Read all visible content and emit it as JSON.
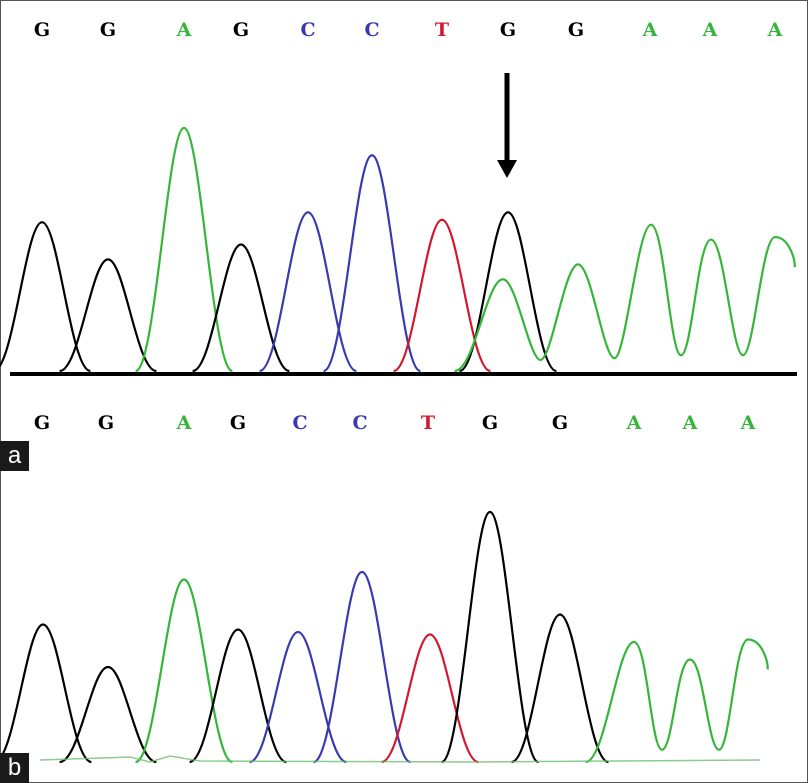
{
  "panels": [
    {
      "label": "a",
      "bases": [
        "G",
        "G",
        "A",
        "G",
        "C",
        "C",
        "T",
        "G",
        "G",
        "A",
        "A",
        "A"
      ],
      "peaks": [
        {
          "base": "G",
          "height": 0.6
        },
        {
          "base": "G",
          "height": 0.45
        },
        {
          "base": "A",
          "height": 0.98
        },
        {
          "base": "G",
          "height": 0.51
        },
        {
          "base": "C",
          "height": 0.64
        },
        {
          "base": "C",
          "height": 0.87
        },
        {
          "base": "T",
          "height": 0.61
        },
        {
          "base": "G",
          "height": 0.64
        },
        {
          "base": "A",
          "height": 0.37
        },
        {
          "base": "G",
          "height": 0.43
        },
        {
          "base": "A",
          "height": 0.59
        },
        {
          "base": "A",
          "height": 0.53
        },
        {
          "base": "A",
          "height": 0.54
        }
      ],
      "marker": "heterozygous-g-a-arrow"
    },
    {
      "label": "b",
      "bases": [
        "G",
        "G",
        "A",
        "G",
        "C",
        "C",
        "T",
        "G",
        "G",
        "A",
        "A",
        "A"
      ],
      "peaks": [
        {
          "base": "G",
          "height": 0.55
        },
        {
          "base": "G",
          "height": 0.38
        },
        {
          "base": "A",
          "height": 0.73
        },
        {
          "base": "G",
          "height": 0.53
        },
        {
          "base": "C",
          "height": 0.52
        },
        {
          "base": "C",
          "height": 0.76
        },
        {
          "base": "T",
          "height": 0.51
        },
        {
          "base": "G",
          "height": 1.0
        },
        {
          "base": "G",
          "height": 0.59
        },
        {
          "base": "A",
          "height": 0.48
        },
        {
          "base": "A",
          "height": 0.41
        },
        {
          "base": "A",
          "height": 0.49
        }
      ]
    }
  ],
  "base_colors": {
    "G": "#000000",
    "A": "#35b53a",
    "C": "#3a3ab0",
    "T": "#d2182f"
  }
}
